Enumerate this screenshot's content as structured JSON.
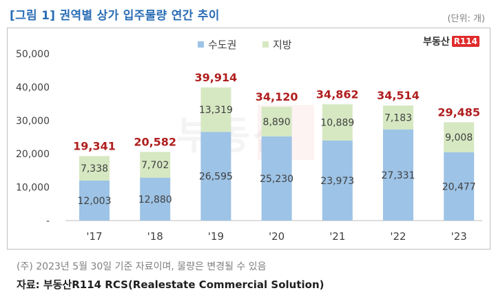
{
  "header": {
    "title": "[그림 1] 권역별 상가 입주물량 연간 추이",
    "unit": "(단위: 개)"
  },
  "logo": {
    "text": "부동산",
    "badge": "R114"
  },
  "watermark": {
    "text": "부동산",
    "badge": "R114"
  },
  "footer": {
    "note": "(주) 2023년 5월 30일 기준 자료이며, 물량은 변경될 수 있음",
    "source": "자료: 부동산R114 RCS(Realestate Commercial Solution)"
  },
  "colors": {
    "capital": "#9dc3e6",
    "regional": "#d6e8c2",
    "total_label": "#b01e1e",
    "title": "#2a6db5"
  },
  "chart_data": {
    "type": "bar",
    "stacked": true,
    "categories": [
      "'17",
      "'18",
      "'19",
      "'20",
      "'21",
      "'22",
      "'23"
    ],
    "series": [
      {
        "name": "수도권",
        "values": [
          12003,
          12880,
          26595,
          25230,
          23973,
          27331,
          20477
        ]
      },
      {
        "name": "지방",
        "values": [
          7338,
          7702,
          13319,
          8890,
          10889,
          7183,
          9008
        ]
      }
    ],
    "totals": [
      19341,
      20582,
      39914,
      34120,
      34862,
      34514,
      29485
    ],
    "value_labels": {
      "series": [
        [
          "12,003",
          "12,880",
          "26,595",
          "25,230",
          "23,973",
          "27,331",
          "20,477"
        ],
        [
          "7,338",
          "7,702",
          "13,319",
          "8,890",
          "10,889",
          "7,183",
          "9,008"
        ]
      ],
      "totals": [
        "19,341",
        "20,582",
        "39,914",
        "34,120",
        "34,862",
        "34,514",
        "29,485"
      ]
    },
    "y_ticks": [
      "-",
      "10,000",
      "20,000",
      "30,000",
      "40,000",
      "50,000"
    ],
    "ylim": [
      0,
      50000
    ],
    "legend_position": "top",
    "grid": false
  }
}
